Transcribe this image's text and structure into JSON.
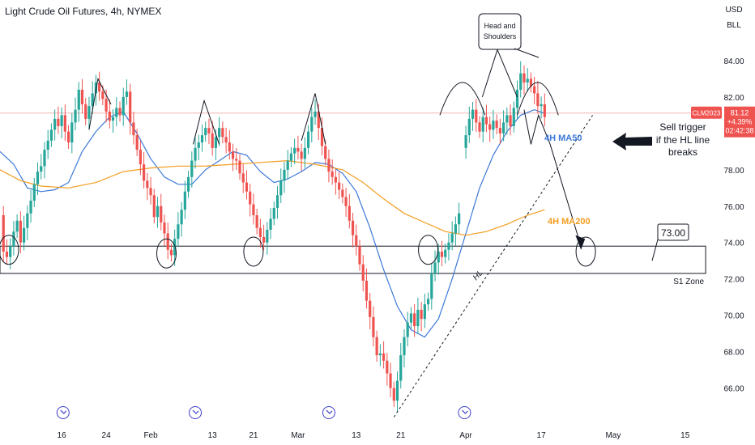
{
  "chart_data": {
    "type": "candlestick",
    "title": "Light Crude Oil Futures, 4h, NYMEX",
    "currency_top": "USD",
    "currency_bottom": "BLL",
    "ylim": [
      64.2,
      86.0
    ],
    "y_ticks": [
      "84.00",
      "82.00",
      "80.00",
      "78.00",
      "76.00",
      "74.00",
      "72.00",
      "70.00",
      "68.00",
      "66.00"
    ],
    "y_tick_values": [
      84,
      82,
      80,
      78,
      76,
      74,
      72,
      70,
      68,
      66
    ],
    "xlim": [
      0,
      105
    ],
    "x_ticks": [
      {
        "label": "16",
        "x": 9
      },
      {
        "label": "24",
        "x": 15.5
      },
      {
        "label": "Feb",
        "x": 22
      },
      {
        "label": "13",
        "x": 31
      },
      {
        "label": "21",
        "x": 37
      },
      {
        "label": "Mar",
        "x": 43.5
      },
      {
        "label": "13",
        "x": 52
      },
      {
        "label": "21",
        "x": 58.5
      },
      {
        "label": "Apr",
        "x": 68
      },
      {
        "label": "17",
        "x": 79
      },
      {
        "label": "May",
        "x": 89.5
      },
      {
        "label": "15",
        "x": 100
      }
    ],
    "price_series": [
      [
        0,
        75.5
      ],
      [
        0.5,
        73.5
      ],
      [
        1,
        73.2
      ],
      [
        1.5,
        73.8
      ],
      [
        2,
        74.6
      ],
      [
        2.5,
        75.2
      ],
      [
        3,
        74.0
      ],
      [
        3.5,
        74.8
      ],
      [
        4,
        75.6
      ],
      [
        4.5,
        76.3
      ],
      [
        5,
        77.2
      ],
      [
        5.5,
        77.9
      ],
      [
        6,
        78.2
      ],
      [
        6.5,
        79.1
      ],
      [
        7,
        79.6
      ],
      [
        7.5,
        80.2
      ],
      [
        8,
        80.8
      ],
      [
        8.5,
        80.4
      ],
      [
        9,
        81.0
      ],
      [
        9.5,
        80.1
      ],
      [
        10,
        79.5
      ],
      [
        10.5,
        80.6
      ],
      [
        11,
        81.3
      ],
      [
        11.5,
        82.4
      ],
      [
        12,
        81.6
      ],
      [
        12.5,
        80.8
      ],
      [
        13,
        81.5
      ],
      [
        13.5,
        82.2
      ],
      [
        14,
        82.8
      ],
      [
        14.5,
        82.3
      ],
      [
        15,
        81.9
      ],
      [
        15.5,
        81.2
      ],
      [
        16,
        80.7
      ],
      [
        16.5,
        80.9
      ],
      [
        17,
        81.4
      ],
      [
        17.5,
        81.0
      ],
      [
        18,
        82.0
      ],
      [
        18.5,
        82.3
      ],
      [
        19,
        80.6
      ],
      [
        19.5,
        79.9
      ],
      [
        20,
        79.1
      ],
      [
        20.5,
        78.3
      ],
      [
        21,
        77.4
      ],
      [
        21.5,
        77.0
      ],
      [
        22,
        76.6
      ],
      [
        22.5,
        75.4
      ],
      [
        23,
        76.0
      ],
      [
        23.5,
        75.1
      ],
      [
        24,
        74.5
      ],
      [
        24.5,
        73.6
      ],
      [
        25,
        73.3
      ],
      [
        25.5,
        74.2
      ],
      [
        26,
        75.0
      ],
      [
        26.5,
        75.8
      ],
      [
        27,
        76.8
      ],
      [
        27.5,
        77.6
      ],
      [
        28,
        78.5
      ],
      [
        28.5,
        79.2
      ],
      [
        29,
        79.5
      ],
      [
        29.5,
        79.9
      ],
      [
        30,
        80.3
      ],
      [
        30.5,
        80.0
      ],
      [
        31,
        79.2
      ],
      [
        31.5,
        79.8
      ],
      [
        32,
        80.3
      ],
      [
        32.5,
        79.8
      ],
      [
        33,
        79.5
      ],
      [
        33.5,
        79.0
      ],
      [
        34,
        78.6
      ],
      [
        34.5,
        78.5
      ],
      [
        35,
        77.8
      ],
      [
        35.5,
        77.3
      ],
      [
        36,
        76.8
      ],
      [
        36.5,
        76.1
      ],
      [
        37,
        75.5
      ],
      [
        37.5,
        74.8
      ],
      [
        38,
        74.3
      ],
      [
        38.5,
        74.0
      ],
      [
        39,
        74.7
      ],
      [
        39.5,
        75.3
      ],
      [
        40,
        75.9
      ],
      [
        40.5,
        76.6
      ],
      [
        41,
        77.4
      ],
      [
        41.5,
        78.0
      ],
      [
        42,
        78.5
      ],
      [
        42.5,
        78.9
      ],
      [
        43,
        79.2
      ],
      [
        43.5,
        79.0
      ],
      [
        44,
        78.6
      ],
      [
        44.5,
        79.2
      ],
      [
        45,
        80.1
      ],
      [
        45.5,
        80.9
      ],
      [
        46,
        81.2
      ],
      [
        46.5,
        80.3
      ],
      [
        47,
        79.3
      ],
      [
        47.5,
        78.6
      ],
      [
        48,
        77.9
      ],
      [
        48.5,
        77.6
      ],
      [
        49,
        77.3
      ],
      [
        49.5,
        76.9
      ],
      [
        50,
        76.5
      ],
      [
        50.5,
        76.0
      ],
      [
        51,
        75.2
      ],
      [
        51.5,
        74.4
      ],
      [
        52,
        73.8
      ],
      [
        52.5,
        72.8
      ],
      [
        53,
        71.9
      ],
      [
        53.5,
        70.8
      ],
      [
        54,
        69.9
      ],
      [
        54.5,
        68.8
      ],
      [
        55,
        67.8
      ],
      [
        55.5,
        67.9
      ],
      [
        56,
        67.5
      ],
      [
        56.5,
        66.8
      ],
      [
        57,
        66.0
      ],
      [
        57.5,
        65.3
      ],
      [
        58,
        66.4
      ],
      [
        58.5,
        67.8
      ],
      [
        59,
        68.8
      ],
      [
        59.5,
        69.6
      ],
      [
        60,
        70.1
      ],
      [
        60.5,
        69.4
      ],
      [
        61,
        70.3
      ],
      [
        61.5,
        69.8
      ],
      [
        62,
        70.6
      ],
      [
        62.5,
        70.9
      ],
      [
        63,
        72.3
      ],
      [
        63.5,
        72.9
      ],
      [
        64,
        73.5
      ],
      [
        64.5,
        73.2
      ],
      [
        65,
        73.6
      ],
      [
        65.5,
        74.0
      ],
      [
        66,
        74.5
      ],
      [
        66.5,
        75.0
      ],
      [
        67,
        75.6
      ]
    ],
    "price_series_2": [
      [
        67.5,
        79.2
      ],
      [
        68,
        79.9
      ],
      [
        68.5,
        80.8
      ],
      [
        69,
        81.3
      ],
      [
        69.5,
        80.6
      ],
      [
        70,
        80.1
      ],
      [
        70.5,
        80.9
      ],
      [
        71,
        80.5
      ],
      [
        71.5,
        80.2
      ],
      [
        72,
        80.7
      ],
      [
        72.5,
        80.3
      ],
      [
        73,
        80.0
      ],
      [
        73.5,
        80.6
      ],
      [
        74,
        81.0
      ],
      [
        74.5,
        80.4
      ],
      [
        75,
        81.4
      ],
      [
        75.5,
        82.4
      ],
      [
        76,
        83.3
      ],
      [
        76.5,
        82.8
      ],
      [
        77,
        83.0
      ],
      [
        77.5,
        82.6
      ],
      [
        78,
        82.2
      ],
      [
        78.5,
        81.5
      ],
      [
        79,
        81.6
      ],
      [
        79.5,
        80.9
      ]
    ],
    "series": [
      {
        "name": "4H MA50",
        "color": "#3c78d8",
        "points": [
          [
            0,
            79.0
          ],
          [
            2,
            78.3
          ],
          [
            4,
            77.0
          ],
          [
            6,
            76.8
          ],
          [
            8,
            76.9
          ],
          [
            10,
            77.3
          ],
          [
            12,
            79.0
          ],
          [
            14,
            80.1
          ],
          [
            16,
            80.9
          ],
          [
            18,
            81.2
          ],
          [
            20,
            80.0
          ],
          [
            22,
            78.6
          ],
          [
            24,
            77.6
          ],
          [
            26,
            77.2
          ],
          [
            28,
            77.2
          ],
          [
            30,
            78.0
          ],
          [
            32,
            78.5
          ],
          [
            34,
            79.0
          ],
          [
            36,
            78.8
          ],
          [
            38,
            77.9
          ],
          [
            40,
            77.3
          ],
          [
            42,
            77.5
          ],
          [
            44,
            77.9
          ],
          [
            46,
            78.4
          ],
          [
            48,
            78.3
          ],
          [
            50,
            77.8
          ],
          [
            52,
            76.8
          ],
          [
            54,
            74.8
          ],
          [
            56,
            72.5
          ],
          [
            58,
            70.5
          ],
          [
            60,
            69.2
          ],
          [
            62,
            68.8
          ],
          [
            64,
            69.8
          ],
          [
            66,
            72.0
          ],
          [
            68,
            74.5
          ],
          [
            70,
            77.0
          ],
          [
            72,
            78.8
          ],
          [
            74,
            80.1
          ],
          [
            76,
            81.0
          ],
          [
            78,
            81.3
          ],
          [
            79.5,
            81.1
          ]
        ]
      },
      {
        "name": "4H MA200",
        "color": "#f39c1e",
        "points": [
          [
            0,
            78.0
          ],
          [
            3,
            77.4
          ],
          [
            6,
            77.1
          ],
          [
            10,
            77.0
          ],
          [
            14,
            77.3
          ],
          [
            18,
            77.9
          ],
          [
            22,
            78.1
          ],
          [
            26,
            78.2
          ],
          [
            30,
            78.2
          ],
          [
            34,
            78.3
          ],
          [
            38,
            78.4
          ],
          [
            42,
            78.5
          ],
          [
            46,
            78.3
          ],
          [
            50,
            78.0
          ],
          [
            53,
            77.3
          ],
          [
            56,
            76.4
          ],
          [
            59,
            75.6
          ],
          [
            62,
            75.1
          ],
          [
            65,
            74.6
          ],
          [
            68,
            74.4
          ],
          [
            71,
            74.6
          ],
          [
            74,
            75.0
          ],
          [
            77,
            75.5
          ],
          [
            79.5,
            75.8
          ]
        ]
      }
    ],
    "hl_line": {
      "name": "HL",
      "points": [
        [
          57.5,
          64.4
        ],
        [
          86.5,
          81.0
        ]
      ]
    },
    "s1_zone": {
      "label": "S1 Zone",
      "ymin": 72.3,
      "ymax": 73.8
    },
    "target": {
      "label": "73.00",
      "value": 73.0,
      "x": 89.8
    },
    "current_price": {
      "symbol": "CLM2023",
      "price": "81.12",
      "change": "+4.39%",
      "countdown": "02:42:38",
      "value": 81.12,
      "color": "#ef5350"
    },
    "annotations": {
      "head_and_shoulders_title": "Head and Shoulders",
      "ma50_label": "4H MA50",
      "ma200_label": "4H MA200",
      "sell_trigger": "Sell trigger if the HL line breaks"
    },
    "legend": "none",
    "grid": false
  }
}
